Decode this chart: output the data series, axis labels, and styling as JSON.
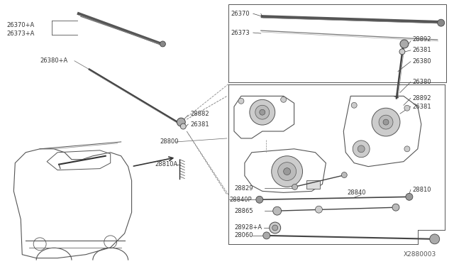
{
  "bg_color": "#FFFFFF",
  "diagram_id": "X2880003",
  "lc": "#444444",
  "tc": "#333333",
  "fs": 6.0,
  "labels": {
    "26370A": "26370+A",
    "26373A": "26373+A",
    "26380A": "26380+A",
    "28882": "28882",
    "26381_left": "26381",
    "28800": "28800",
    "28810A": "28810A",
    "26370": "26370",
    "26373": "26373",
    "28892": "28892",
    "26381_right": "26381",
    "26380": "26380",
    "28829": "28829",
    "28840P": "28840P",
    "28865": "28865",
    "28810": "28810",
    "28840": "28840",
    "28928A": "28928+A",
    "28060": "28060"
  }
}
